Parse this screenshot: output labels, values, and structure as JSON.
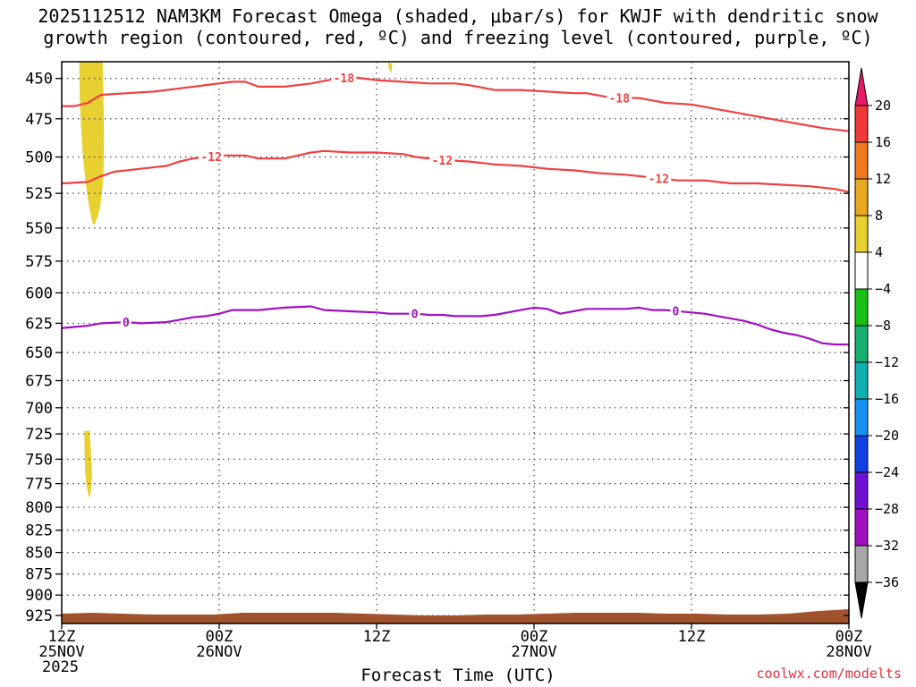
{
  "title": {
    "line1": "2025112512 NAM3KM Forecast Omega (shaded, μbar/s) for KWJF with dendritic snow",
    "line2": "growth region (contoured, red, ºC) and freezing level (contoured, purple, ºC)"
  },
  "credit": "coolwx.com/modelts",
  "chart_data": {
    "type": "time-height cross section",
    "xlabel": "Forecast Time (UTC)",
    "x_ticks": [
      {
        "line1": "12Z",
        "line2": "25NOV",
        "line3": "2025",
        "hour": 0
      },
      {
        "line1": "00Z",
        "line2": "26NOV",
        "line3": "",
        "hour": 12
      },
      {
        "line1": "12Z",
        "line2": "",
        "line3": "",
        "hour": 24
      },
      {
        "line1": "00Z",
        "line2": "27NOV",
        "line3": "",
        "hour": 36
      },
      {
        "line1": "12Z",
        "line2": "",
        "line3": "",
        "hour": 48
      },
      {
        "line1": "00Z",
        "line2": "28NOV",
        "line3": "",
        "hour": 60
      }
    ],
    "xlim_hours": [
      0,
      60
    ],
    "y_ticks": [
      450,
      475,
      500,
      525,
      550,
      575,
      600,
      625,
      650,
      675,
      700,
      725,
      750,
      775,
      800,
      825,
      850,
      875,
      900,
      925
    ],
    "ylim_hPa": [
      440,
      935
    ],
    "y_scale": "log-pressure",
    "grid": true,
    "colorbar": {
      "labels": [
        "20",
        "16",
        "12",
        "8",
        "4",
        "−4",
        "−8",
        "−12",
        "−16",
        "−20",
        "−24",
        "−28",
        "−32",
        "−36"
      ],
      "colors": [
        "#e8186a",
        "#f03a3a",
        "#f07a20",
        "#e8a820",
        "#e8d030",
        "#ffffff",
        "#18c018",
        "#18b070",
        "#10b0b0",
        "#1890f0",
        "#1040e0",
        "#7010d0",
        "#a010c0",
        "#a8a8a8",
        "#000000"
      ]
    },
    "contours": [
      {
        "label": "-18",
        "color": "#f04040",
        "points": [
          [
            0,
            467
          ],
          [
            1,
            467
          ],
          [
            2,
            465
          ],
          [
            3,
            460
          ],
          [
            5,
            459
          ],
          [
            7,
            458
          ],
          [
            9,
            456
          ],
          [
            11,
            454
          ],
          [
            13,
            452
          ],
          [
            14,
            452
          ],
          [
            15,
            455
          ],
          [
            17,
            455
          ],
          [
            19,
            453
          ],
          [
            21,
            450
          ],
          [
            22,
            449
          ],
          [
            24,
            451
          ],
          [
            26,
            452
          ],
          [
            28,
            453
          ],
          [
            30,
            453
          ],
          [
            31,
            454
          ],
          [
            33,
            457
          ],
          [
            35,
            457
          ],
          [
            37,
            458
          ],
          [
            39,
            459
          ],
          [
            40,
            459
          ],
          [
            42,
            462
          ],
          [
            44,
            462
          ],
          [
            46,
            465
          ],
          [
            48,
            466
          ],
          [
            50,
            469
          ],
          [
            52,
            472
          ],
          [
            54,
            475
          ],
          [
            56,
            478
          ],
          [
            58,
            481
          ],
          [
            60,
            483
          ]
        ],
        "label_hours": [
          21.5,
          42.5
        ]
      },
      {
        "label": "-12",
        "color": "#f04040",
        "points": [
          [
            0,
            518
          ],
          [
            2,
            517
          ],
          [
            3,
            513
          ],
          [
            4,
            510
          ],
          [
            6,
            508
          ],
          [
            8,
            506
          ],
          [
            9,
            503
          ],
          [
            10,
            501
          ],
          [
            11,
            500
          ],
          [
            12,
            499
          ],
          [
            13,
            499
          ],
          [
            14,
            499
          ],
          [
            15,
            501
          ],
          [
            17,
            501
          ],
          [
            18,
            499
          ],
          [
            19,
            497
          ],
          [
            20,
            496
          ],
          [
            22,
            497
          ],
          [
            24,
            497
          ],
          [
            26,
            498
          ],
          [
            27,
            500
          ],
          [
            29,
            502
          ],
          [
            31,
            503
          ],
          [
            33,
            505
          ],
          [
            35,
            506
          ],
          [
            37,
            508
          ],
          [
            39,
            509
          ],
          [
            41,
            511
          ],
          [
            43,
            512
          ],
          [
            45,
            514
          ],
          [
            47,
            516
          ],
          [
            49,
            516
          ],
          [
            51,
            518
          ],
          [
            53,
            518
          ],
          [
            55,
            519
          ],
          [
            57,
            520
          ],
          [
            59,
            522
          ],
          [
            60,
            524
          ]
        ],
        "label_hours": [
          11.4,
          29.0,
          45.5
        ]
      },
      {
        "label": "0",
        "color": "#a010c0",
        "points": [
          [
            0,
            629
          ],
          [
            2,
            627
          ],
          [
            3,
            625
          ],
          [
            5,
            624
          ],
          [
            6,
            625
          ],
          [
            8,
            624
          ],
          [
            9,
            622
          ],
          [
            10,
            620
          ],
          [
            11,
            619
          ],
          [
            12,
            617
          ],
          [
            13,
            614
          ],
          [
            14,
            614
          ],
          [
            15,
            614
          ],
          [
            17,
            612
          ],
          [
            19,
            611
          ],
          [
            20,
            614
          ],
          [
            22,
            615
          ],
          [
            24,
            616
          ],
          [
            25,
            617
          ],
          [
            26,
            617
          ],
          [
            27,
            617
          ],
          [
            28,
            618
          ],
          [
            29,
            618
          ],
          [
            30,
            619
          ],
          [
            31,
            619
          ],
          [
            32,
            619
          ],
          [
            33,
            618
          ],
          [
            34,
            616
          ],
          [
            35,
            614
          ],
          [
            36,
            612
          ],
          [
            37,
            613
          ],
          [
            38,
            617
          ],
          [
            39,
            615
          ],
          [
            40,
            613
          ],
          [
            42,
            613
          ],
          [
            43,
            613
          ],
          [
            44,
            612
          ],
          [
            45,
            614
          ],
          [
            46,
            614
          ],
          [
            47,
            615
          ],
          [
            48,
            616
          ],
          [
            49,
            617
          ],
          [
            50,
            619
          ],
          [
            51,
            621
          ],
          [
            52,
            623
          ],
          [
            53,
            626
          ],
          [
            54,
            630
          ],
          [
            55,
            633
          ],
          [
            56,
            635
          ],
          [
            57,
            638
          ],
          [
            58,
            642
          ],
          [
            59,
            643
          ],
          [
            60,
            643
          ]
        ],
        "label_hours": [
          4.9,
          26.9,
          46.8
        ]
      }
    ],
    "shaded_regions": [
      {
        "value_range": "4 to 8",
        "color": "#e8d030",
        "hour_center": 2.3,
        "p_top": 440,
        "p_bottom": 548
      },
      {
        "value_range": "4 to 8",
        "color": "#e8d030",
        "hour_center": 2.0,
        "p_top": 722,
        "p_bottom": 790
      },
      {
        "value_range": "4 to 8",
        "color": "#e8d030",
        "hour_center": 25.0,
        "p_top": 440,
        "p_bottom": 447
      }
    ],
    "terrain_color": "#a0522d"
  }
}
